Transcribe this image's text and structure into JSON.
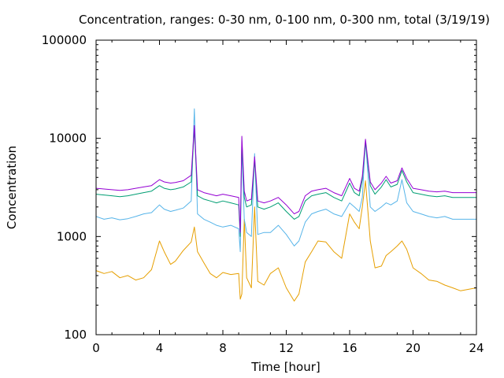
{
  "chart_data": {
    "type": "line",
    "title": "Concentration, ranges: 0-30 nm, 0-100 nm, 0-300 nm, total (3/19/19)",
    "xlabel": "Time [hour]",
    "ylabel": "Concentration",
    "xlim": [
      0,
      24
    ],
    "ylim": [
      100,
      100000
    ],
    "yscale": "log",
    "grid": false,
    "x_ticks": [
      0,
      4,
      8,
      12,
      16,
      20,
      24
    ],
    "x_tick_labels": [
      "0",
      "4",
      "8",
      "12",
      "16",
      "20",
      "24"
    ],
    "y_ticks": [
      100,
      1000,
      10000,
      100000
    ],
    "y_tick_labels": [
      "100",
      "1000",
      "10000",
      "100000"
    ],
    "series": [
      {
        "color": "#e69f00",
        "x": [
          0,
          0.5,
          1,
          1.5,
          2,
          2.5,
          3,
          3.5,
          4,
          4.3,
          4.7,
          5,
          5.5,
          6,
          6.2,
          6.4,
          6.8,
          7.2,
          7.6,
          8,
          8.5,
          9,
          9.1,
          9.2,
          9.35,
          9.5,
          9.8,
          10,
          10.2,
          10.6,
          11,
          11.5,
          12,
          12.5,
          12.8,
          13.2,
          13.6,
          14,
          14.5,
          15,
          15.5,
          16,
          16.3,
          16.6,
          16.8,
          17,
          17.3,
          17.6,
          18,
          18.3,
          18.6,
          19,
          19.3,
          19.6,
          20,
          20.5,
          21,
          21.5,
          22,
          22.5,
          23,
          23.5,
          24
        ],
        "y": [
          450,
          420,
          440,
          380,
          400,
          360,
          380,
          460,
          900,
          700,
          520,
          560,
          720,
          880,
          1250,
          700,
          540,
          420,
          380,
          430,
          410,
          420,
          230,
          260,
          1500,
          380,
          300,
          2000,
          350,
          320,
          420,
          480,
          300,
          220,
          260,
          550,
          700,
          900,
          880,
          700,
          600,
          1700,
          1400,
          1200,
          2000,
          3700,
          900,
          480,
          500,
          640,
          700,
          800,
          900,
          740,
          480,
          420,
          360,
          350,
          320,
          300,
          280,
          290,
          300
        ]
      },
      {
        "color": "#56b4e9",
        "x": [
          0,
          0.5,
          1,
          1.5,
          2,
          2.5,
          3,
          3.5,
          4,
          4.3,
          4.7,
          5,
          5.5,
          6,
          6.2,
          6.4,
          6.8,
          7.2,
          7.6,
          8,
          8.5,
          9,
          9.1,
          9.2,
          9.35,
          9.5,
          9.8,
          10,
          10.2,
          10.6,
          11,
          11.5,
          12,
          12.5,
          12.8,
          13.2,
          13.6,
          14,
          14.5,
          15,
          15.5,
          16,
          16.3,
          16.6,
          16.8,
          17,
          17.3,
          17.6,
          18,
          18.3,
          18.6,
          19,
          19.3,
          19.6,
          20,
          20.5,
          21,
          21.5,
          22,
          22.5,
          23,
          23.5,
          24
        ],
        "y": [
          1600,
          1500,
          1550,
          1480,
          1520,
          1600,
          1700,
          1750,
          2100,
          1900,
          1800,
          1850,
          1950,
          2300,
          20000,
          1700,
          1500,
          1400,
          1300,
          1250,
          1300,
          1200,
          700,
          8000,
          1500,
          1100,
          1000,
          7000,
          1050,
          1100,
          1100,
          1300,
          1050,
          800,
          900,
          1400,
          1700,
          1800,
          1900,
          1700,
          1600,
          2200,
          2000,
          1800,
          2500,
          9500,
          2000,
          1800,
          2000,
          2200,
          2100,
          2300,
          3800,
          2200,
          1800,
          1700,
          1600,
          1550,
          1600,
          1500,
          1500,
          1500,
          1500
        ]
      },
      {
        "color": "#009e73",
        "x": [
          0,
          0.5,
          1,
          1.5,
          2,
          2.5,
          3,
          3.5,
          4,
          4.3,
          4.7,
          5,
          5.5,
          6,
          6.2,
          6.4,
          6.8,
          7.2,
          7.6,
          8,
          8.5,
          9,
          9.1,
          9.2,
          9.35,
          9.5,
          9.8,
          10,
          10.2,
          10.6,
          11,
          11.5,
          12,
          12.5,
          12.8,
          13.2,
          13.6,
          14,
          14.5,
          15,
          15.5,
          16,
          16.3,
          16.6,
          16.8,
          17,
          17.3,
          17.6,
          18,
          18.3,
          18.6,
          19,
          19.3,
          19.6,
          20,
          20.5,
          21,
          21.5,
          22,
          22.5,
          23,
          23.5,
          24
        ],
        "y": [
          2700,
          2650,
          2600,
          2550,
          2600,
          2700,
          2800,
          2900,
          3300,
          3100,
          3000,
          3050,
          3200,
          3600,
          12500,
          2600,
          2400,
          2300,
          2200,
          2300,
          2200,
          2100,
          1000,
          9500,
          2500,
          2000,
          2100,
          6000,
          2000,
          1900,
          2000,
          2200,
          1800,
          1500,
          1600,
          2300,
          2600,
          2700,
          2800,
          2500,
          2300,
          3500,
          2800,
          2600,
          3800,
          9200,
          3300,
          2700,
          3200,
          3800,
          3200,
          3400,
          4700,
          3600,
          2800,
          2700,
          2600,
          2550,
          2600,
          2500,
          2500,
          2500,
          2500
        ]
      },
      {
        "color": "#9400d3",
        "x": [
          0,
          0.5,
          1,
          1.5,
          2,
          2.5,
          3,
          3.5,
          4,
          4.3,
          4.7,
          5,
          5.5,
          6,
          6.2,
          6.4,
          6.8,
          7.2,
          7.6,
          8,
          8.5,
          9,
          9.1,
          9.2,
          9.35,
          9.5,
          9.8,
          10,
          10.2,
          10.6,
          11,
          11.5,
          12,
          12.5,
          12.8,
          13.2,
          13.6,
          14,
          14.5,
          15,
          15.5,
          16,
          16.3,
          16.6,
          16.8,
          17,
          17.3,
          17.6,
          18,
          18.3,
          18.6,
          19,
          19.3,
          19.6,
          20,
          20.5,
          21,
          21.5,
          22,
          22.5,
          23,
          23.5,
          24
        ],
        "y": [
          3100,
          3050,
          3000,
          2950,
          3000,
          3100,
          3200,
          3300,
          3800,
          3600,
          3500,
          3550,
          3700,
          4200,
          13500,
          3000,
          2800,
          2700,
          2600,
          2700,
          2600,
          2500,
          1100,
          10500,
          2900,
          2300,
          2400,
          6500,
          2300,
          2200,
          2300,
          2500,
          2100,
          1700,
          1800,
          2600,
          2900,
          3000,
          3100,
          2800,
          2600,
          3900,
          3100,
          2900,
          4100,
          9800,
          3600,
          3000,
          3500,
          4100,
          3500,
          3700,
          5000,
          3900,
          3100,
          3000,
          2900,
          2850,
          2900,
          2800,
          2800,
          2800,
          2800
        ]
      }
    ]
  }
}
